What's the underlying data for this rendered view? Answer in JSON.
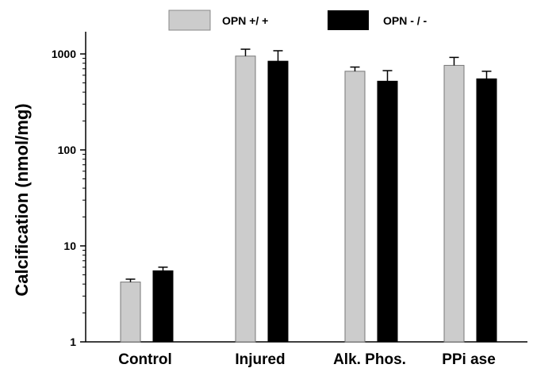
{
  "chart_data": {
    "type": "bar",
    "title": "",
    "xlabel": "",
    "ylabel": "Calcification (nmol/mg)",
    "yscale": "log",
    "ylim": [
      1,
      2000
    ],
    "yticks": [
      {
        "value": 1,
        "label": "1"
      },
      {
        "value": 10,
        "label": "10"
      },
      {
        "value": 100,
        "label": "100"
      },
      {
        "value": 1000,
        "label": "1000"
      }
    ],
    "categories": [
      "Control",
      "Injured",
      "Alk. Phos.",
      "PPi ase"
    ],
    "series": [
      {
        "name": "OPN +/ +",
        "color": "#cccccc",
        "values": [
          4.2,
          950,
          660,
          760
        ],
        "errors": [
          0.3,
          170,
          70,
          160
        ]
      },
      {
        "name": "OPN - / -",
        "color": "#000000",
        "values": [
          5.5,
          840,
          520,
          550
        ],
        "errors": [
          0.5,
          240,
          150,
          110
        ]
      }
    ],
    "legend": "top-center",
    "grid": false
  }
}
